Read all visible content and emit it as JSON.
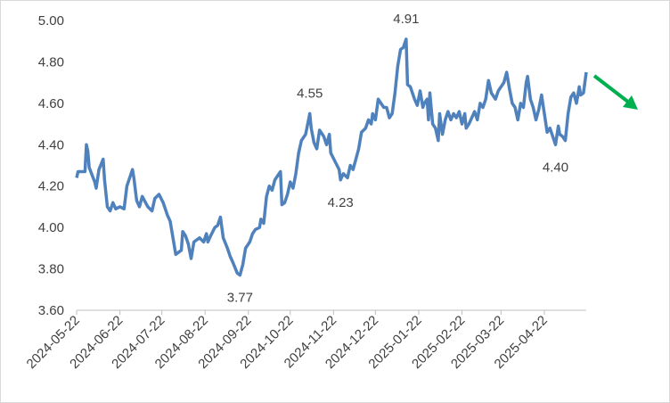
{
  "chart_data": {
    "type": "line",
    "xlim": [
      "2024-05-22",
      "2025-05-22"
    ],
    "xticks": [
      "2024-05-22",
      "2024-06-22",
      "2024-07-22",
      "2024-08-22",
      "2024-09-22",
      "2024-10-22",
      "2024-11-22",
      "2024-12-22",
      "2025-01-22",
      "2025-02-22",
      "2025-03-22",
      "2025-04-22"
    ],
    "ylim": [
      3.6,
      5.0
    ],
    "yticks": [
      {
        "value": 3.6,
        "label": "3.60"
      },
      {
        "value": 3.8,
        "label": "3.80"
      },
      {
        "value": 4.0,
        "label": "4.00"
      },
      {
        "value": 4.2,
        "label": "4.20"
      },
      {
        "value": 4.4,
        "label": "4.40"
      },
      {
        "value": 4.6,
        "label": "4.60"
      },
      {
        "value": 4.8,
        "label": "4.80"
      },
      {
        "value": 5.0,
        "label": "5.00"
      }
    ],
    "grid": false,
    "series": [
      {
        "color": "#4f81bd",
        "x": [
          "2024-05-22",
          "2024-05-23",
          "2024-05-28",
          "2024-05-29",
          "2024-05-30",
          "2024-05-31",
          "2024-06-04",
          "2024-06-05",
          "2024-06-07",
          "2024-06-10",
          "2024-06-11",
          "2024-06-13",
          "2024-06-15",
          "2024-06-17",
          "2024-06-19",
          "2024-06-22",
          "2024-06-25",
          "2024-06-27",
          "2024-07-01",
          "2024-07-02",
          "2024-07-04",
          "2024-07-06",
          "2024-07-08",
          "2024-07-12",
          "2024-07-15",
          "2024-07-17",
          "2024-07-20",
          "2024-07-23",
          "2024-07-26",
          "2024-07-28",
          "2024-07-31",
          "2024-08-01",
          "2024-08-05",
          "2024-08-06",
          "2024-08-08",
          "2024-08-10",
          "2024-08-12",
          "2024-08-14",
          "2024-08-18",
          "2024-08-21",
          "2024-08-23",
          "2024-08-24",
          "2024-08-26",
          "2024-08-29",
          "2024-08-31",
          "2024-09-02",
          "2024-09-04",
          "2024-09-07",
          "2024-09-09",
          "2024-09-11",
          "2024-09-14",
          "2024-09-16",
          "2024-09-18",
          "2024-09-20",
          "2024-09-23",
          "2024-09-25",
          "2024-09-27",
          "2024-09-30",
          "2024-10-01",
          "2024-10-03",
          "2024-10-05",
          "2024-10-07",
          "2024-10-09",
          "2024-10-11",
          "2024-10-14",
          "2024-10-15",
          "2024-10-16",
          "2024-10-18",
          "2024-10-20",
          "2024-10-22",
          "2024-10-24",
          "2024-10-26",
          "2024-10-28",
          "2024-10-30",
          "2024-11-02",
          "2024-11-05",
          "2024-11-06",
          "2024-11-08",
          "2024-11-10",
          "2024-11-12",
          "2024-11-15",
          "2024-11-17",
          "2024-11-19",
          "2024-11-20",
          "2024-11-23",
          "2024-11-26",
          "2024-11-27",
          "2024-11-29",
          "2024-12-02",
          "2024-12-04",
          "2024-12-06",
          "2024-12-08",
          "2024-12-10",
          "2024-12-12",
          "2024-12-15",
          "2024-12-17",
          "2024-12-19",
          "2024-12-20",
          "2024-12-22",
          "2024-12-24",
          "2024-12-26",
          "2024-12-28",
          "2024-12-30",
          "2025-01-01",
          "2025-01-03",
          "2025-01-05",
          "2025-01-07",
          "2025-01-09",
          "2025-01-11",
          "2025-01-13",
          "2025-01-14",
          "2025-01-16",
          "2025-01-18",
          "2025-01-19",
          "2025-01-21",
          "2025-01-23",
          "2025-01-25",
          "2025-01-26",
          "2025-01-28",
          "2025-01-29",
          "2025-01-30",
          "2025-02-01",
          "2025-02-03",
          "2025-02-05",
          "2025-02-06",
          "2025-02-08",
          "2025-02-10",
          "2025-02-12",
          "2025-02-14",
          "2025-02-16",
          "2025-02-18",
          "2025-02-20",
          "2025-02-22",
          "2025-02-24",
          "2025-02-25",
          "2025-02-27",
          "2025-03-01",
          "2025-03-03",
          "2025-03-05",
          "2025-03-07",
          "2025-03-09",
          "2025-03-11",
          "2025-03-13",
          "2025-03-15",
          "2025-03-17",
          "2025-03-18",
          "2025-03-20",
          "2025-03-22",
          "2025-03-24",
          "2025-03-26",
          "2025-03-28",
          "2025-03-30",
          "2025-04-01",
          "2025-04-03",
          "2025-04-05",
          "2025-04-07",
          "2025-04-09",
          "2025-04-10",
          "2025-04-12",
          "2025-04-14",
          "2025-04-16",
          "2025-04-18",
          "2025-04-20",
          "2025-04-22",
          "2025-04-24",
          "2025-04-26",
          "2025-04-28",
          "2025-04-30",
          "2025-05-02",
          "2025-05-03",
          "2025-05-05",
          "2025-05-07",
          "2025-05-09",
          "2025-05-11",
          "2025-05-13",
          "2025-05-15",
          "2025-05-17",
          "2025-05-18",
          "2025-05-20",
          "2025-05-22"
        ],
        "values": [
          4.24,
          4.27,
          4.27,
          4.4,
          4.37,
          4.29,
          4.22,
          4.19,
          4.28,
          4.33,
          4.23,
          4.1,
          4.08,
          4.12,
          4.09,
          4.1,
          4.09,
          4.2,
          4.28,
          4.24,
          4.13,
          4.1,
          4.15,
          4.1,
          4.08,
          4.14,
          4.16,
          4.12,
          4.06,
          4.03,
          3.91,
          3.87,
          3.89,
          3.98,
          3.96,
          3.92,
          3.85,
          3.93,
          3.95,
          3.93,
          3.97,
          3.93,
          3.96,
          4.0,
          4.01,
          4.05,
          3.95,
          3.9,
          3.86,
          3.83,
          3.78,
          3.77,
          3.82,
          3.9,
          3.93,
          3.97,
          3.99,
          4.0,
          4.04,
          4.02,
          4.15,
          4.2,
          4.18,
          4.23,
          4.26,
          4.27,
          4.11,
          4.12,
          4.16,
          4.22,
          4.19,
          4.26,
          4.36,
          4.42,
          4.45,
          4.55,
          4.48,
          4.41,
          4.38,
          4.47,
          4.44,
          4.4,
          4.45,
          4.36,
          4.32,
          4.28,
          4.23,
          4.26,
          4.24,
          4.3,
          4.28,
          4.33,
          4.38,
          4.46,
          4.48,
          4.52,
          4.5,
          4.55,
          4.52,
          4.62,
          4.6,
          4.58,
          4.58,
          4.53,
          4.55,
          4.65,
          4.78,
          4.86,
          4.87,
          4.91,
          4.69,
          4.68,
          4.64,
          4.62,
          4.59,
          4.66,
          4.58,
          4.6,
          4.62,
          4.52,
          4.65,
          4.5,
          4.48,
          4.42,
          4.55,
          4.45,
          4.52,
          4.56,
          4.52,
          4.55,
          4.53,
          4.56,
          4.5,
          4.55,
          4.48,
          4.5,
          4.53,
          4.56,
          4.52,
          4.6,
          4.58,
          4.62,
          4.71,
          4.65,
          4.63,
          4.62,
          4.66,
          4.68,
          4.7,
          4.75,
          4.67,
          4.6,
          4.58,
          4.52,
          4.6,
          4.58,
          4.7,
          4.73,
          4.62,
          4.58,
          4.52,
          4.57,
          4.64,
          4.55,
          4.46,
          4.48,
          4.44,
          4.4,
          4.49,
          4.45,
          4.44,
          4.42,
          4.55,
          4.63,
          4.65,
          4.6,
          4.68,
          4.64,
          4.65,
          4.75
        ]
      }
    ],
    "annotations": [
      {
        "x": "2024-09-16",
        "value": 3.77,
        "label": "3.77"
      },
      {
        "x": "2024-11-05",
        "value": 4.55,
        "label": "4.55"
      },
      {
        "x": "2024-11-27",
        "value": 4.23,
        "label": "4.23"
      },
      {
        "x": "2025-01-13",
        "value": 4.91,
        "label": "4.91"
      },
      {
        "x": "2025-04-30",
        "value": 4.4,
        "label": "4.40"
      }
    ]
  }
}
